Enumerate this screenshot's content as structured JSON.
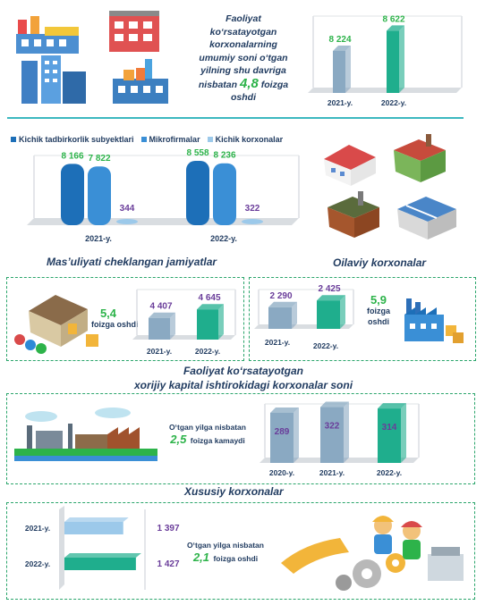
{
  "header": {
    "text_lines": [
      "Faoliyat",
      "ko‘rsatayotgan",
      "korxonalarning",
      "umumiy soni o‘tgan",
      "yilning shu davriga"
    ],
    "text_prefix": "nisbatan",
    "value": "4,8",
    "text_suffix": "foizga",
    "text_last": "oshdi"
  },
  "section2_legend": [
    "Kichik tadbirkorlik subyektlari",
    "Mikrofirmalar",
    "Kichik korxonalar"
  ],
  "section_titles": {
    "llc": "Mas’uliyati cheklangan jamiyatlar",
    "family": "Oilaviy korxonalar",
    "foreign_line1": "Faoliyat ko‘rsatayotgan",
    "foreign_line2": "xorijiy kapital ishtirokidagi  korxonalar soni",
    "private": "Xususiy korxonalar"
  },
  "notes": {
    "llc_value": "5,4",
    "llc_text": "foizga oshdi",
    "family_value": "5,9",
    "family_text1": "foizga",
    "family_text2": "oshdi",
    "foreign_text1": "O‘tgan yilga nisbatan",
    "foreign_value": "2,5",
    "foreign_text2": "foizga kamaydi",
    "private_text1": "O‘tgan yilga nisbatan",
    "private_value": "2,1",
    "private_text2": "foizga oshdi"
  },
  "colors": {
    "gray_bar": "#8aa9c2",
    "green_bar": "#1fae8d",
    "blue_dark": "#1d6fb8",
    "blue_mid": "#3a8fd6",
    "blue_light": "#9cc9ea",
    "accent_green": "#2db34a",
    "purple": "#6a3d9a",
    "navy": "#1f3a5f"
  },
  "chart_data": [
    {
      "id": "total",
      "type": "bar",
      "categories": [
        "2021-y.",
        "2022-y."
      ],
      "values": [
        8224,
        8622
      ],
      "value_labels": [
        "8 224",
        "8 622"
      ]
    },
    {
      "id": "small_business",
      "type": "bar",
      "categories": [
        "2021-y.",
        "2022-y."
      ],
      "series": [
        {
          "name": "Kichik tadbirkorlik subyektlari",
          "values": [
            8166,
            8558
          ],
          "labels": [
            "8 166",
            "8 558"
          ]
        },
        {
          "name": "Mikrofirmalar",
          "values": [
            7822,
            8236
          ],
          "labels": [
            "7 822",
            "8 236"
          ]
        },
        {
          "name": "Kichik korxonalar",
          "values": [
            344,
            322
          ],
          "labels": [
            "344",
            "322"
          ]
        }
      ],
      "legend": "top"
    },
    {
      "id": "llc",
      "type": "bar",
      "categories": [
        "2021-y.",
        "2022-y."
      ],
      "values": [
        4407,
        4645
      ],
      "value_labels": [
        "4 407",
        "4 645"
      ]
    },
    {
      "id": "family",
      "type": "bar",
      "categories": [
        "2021-y.",
        "2022-y."
      ],
      "values": [
        2290,
        2425
      ],
      "value_labels": [
        "2 290",
        "2 425"
      ]
    },
    {
      "id": "foreign",
      "type": "bar",
      "categories": [
        "2020-y.",
        "2021-y.",
        "2022-y."
      ],
      "values": [
        289,
        322,
        314
      ],
      "value_labels": [
        "289",
        "322",
        "314"
      ]
    },
    {
      "id": "private",
      "type": "bar",
      "orientation": "horizontal",
      "categories": [
        "2021-y.",
        "2022-y."
      ],
      "values": [
        1397,
        1427
      ],
      "value_labels": [
        "1 397",
        "1 427"
      ]
    }
  ]
}
